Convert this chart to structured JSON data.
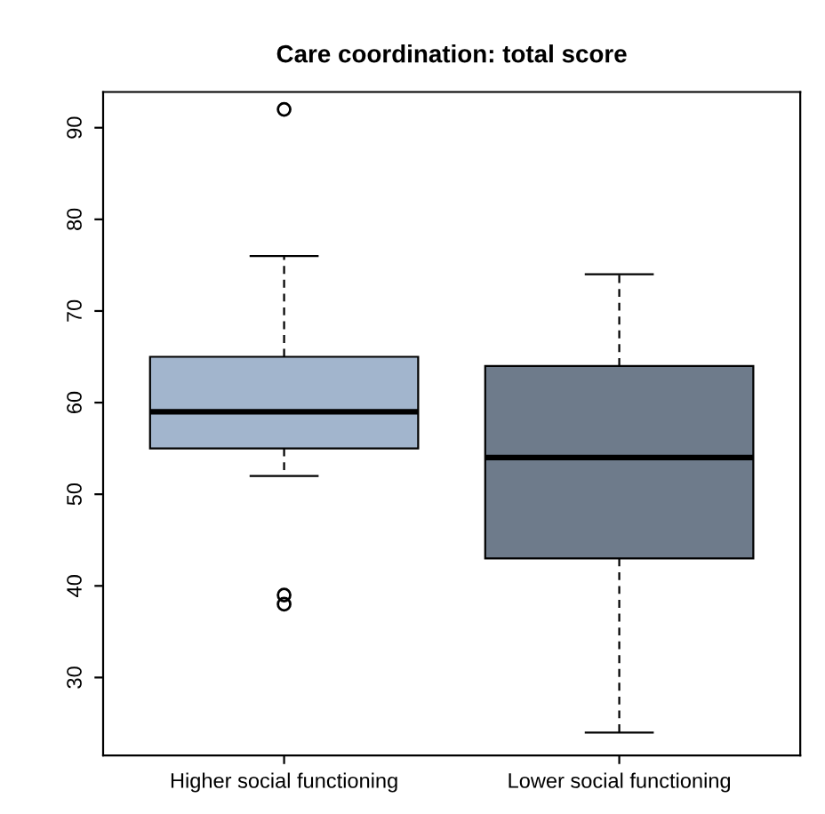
{
  "chart_data": {
    "type": "box",
    "title": "Care coordination: total score",
    "categories": [
      "Higher social functioning",
      "Lower social functioning"
    ],
    "boxes": [
      {
        "low": 52,
        "q1": 55,
        "median": 59,
        "q3": 65,
        "high": 76,
        "outliers": [
          92,
          39,
          38
        ]
      },
      {
        "low": 24,
        "q1": 43,
        "median": 54,
        "q3": 64,
        "high": 74
      }
    ],
    "colors": [
      "#a2b5cd",
      "#6e7b8b"
    ],
    "ylim": [
      21.5,
      93.9
    ],
    "yticks": [
      30,
      40,
      50,
      60,
      70,
      80,
      90
    ],
    "grid": false
  }
}
